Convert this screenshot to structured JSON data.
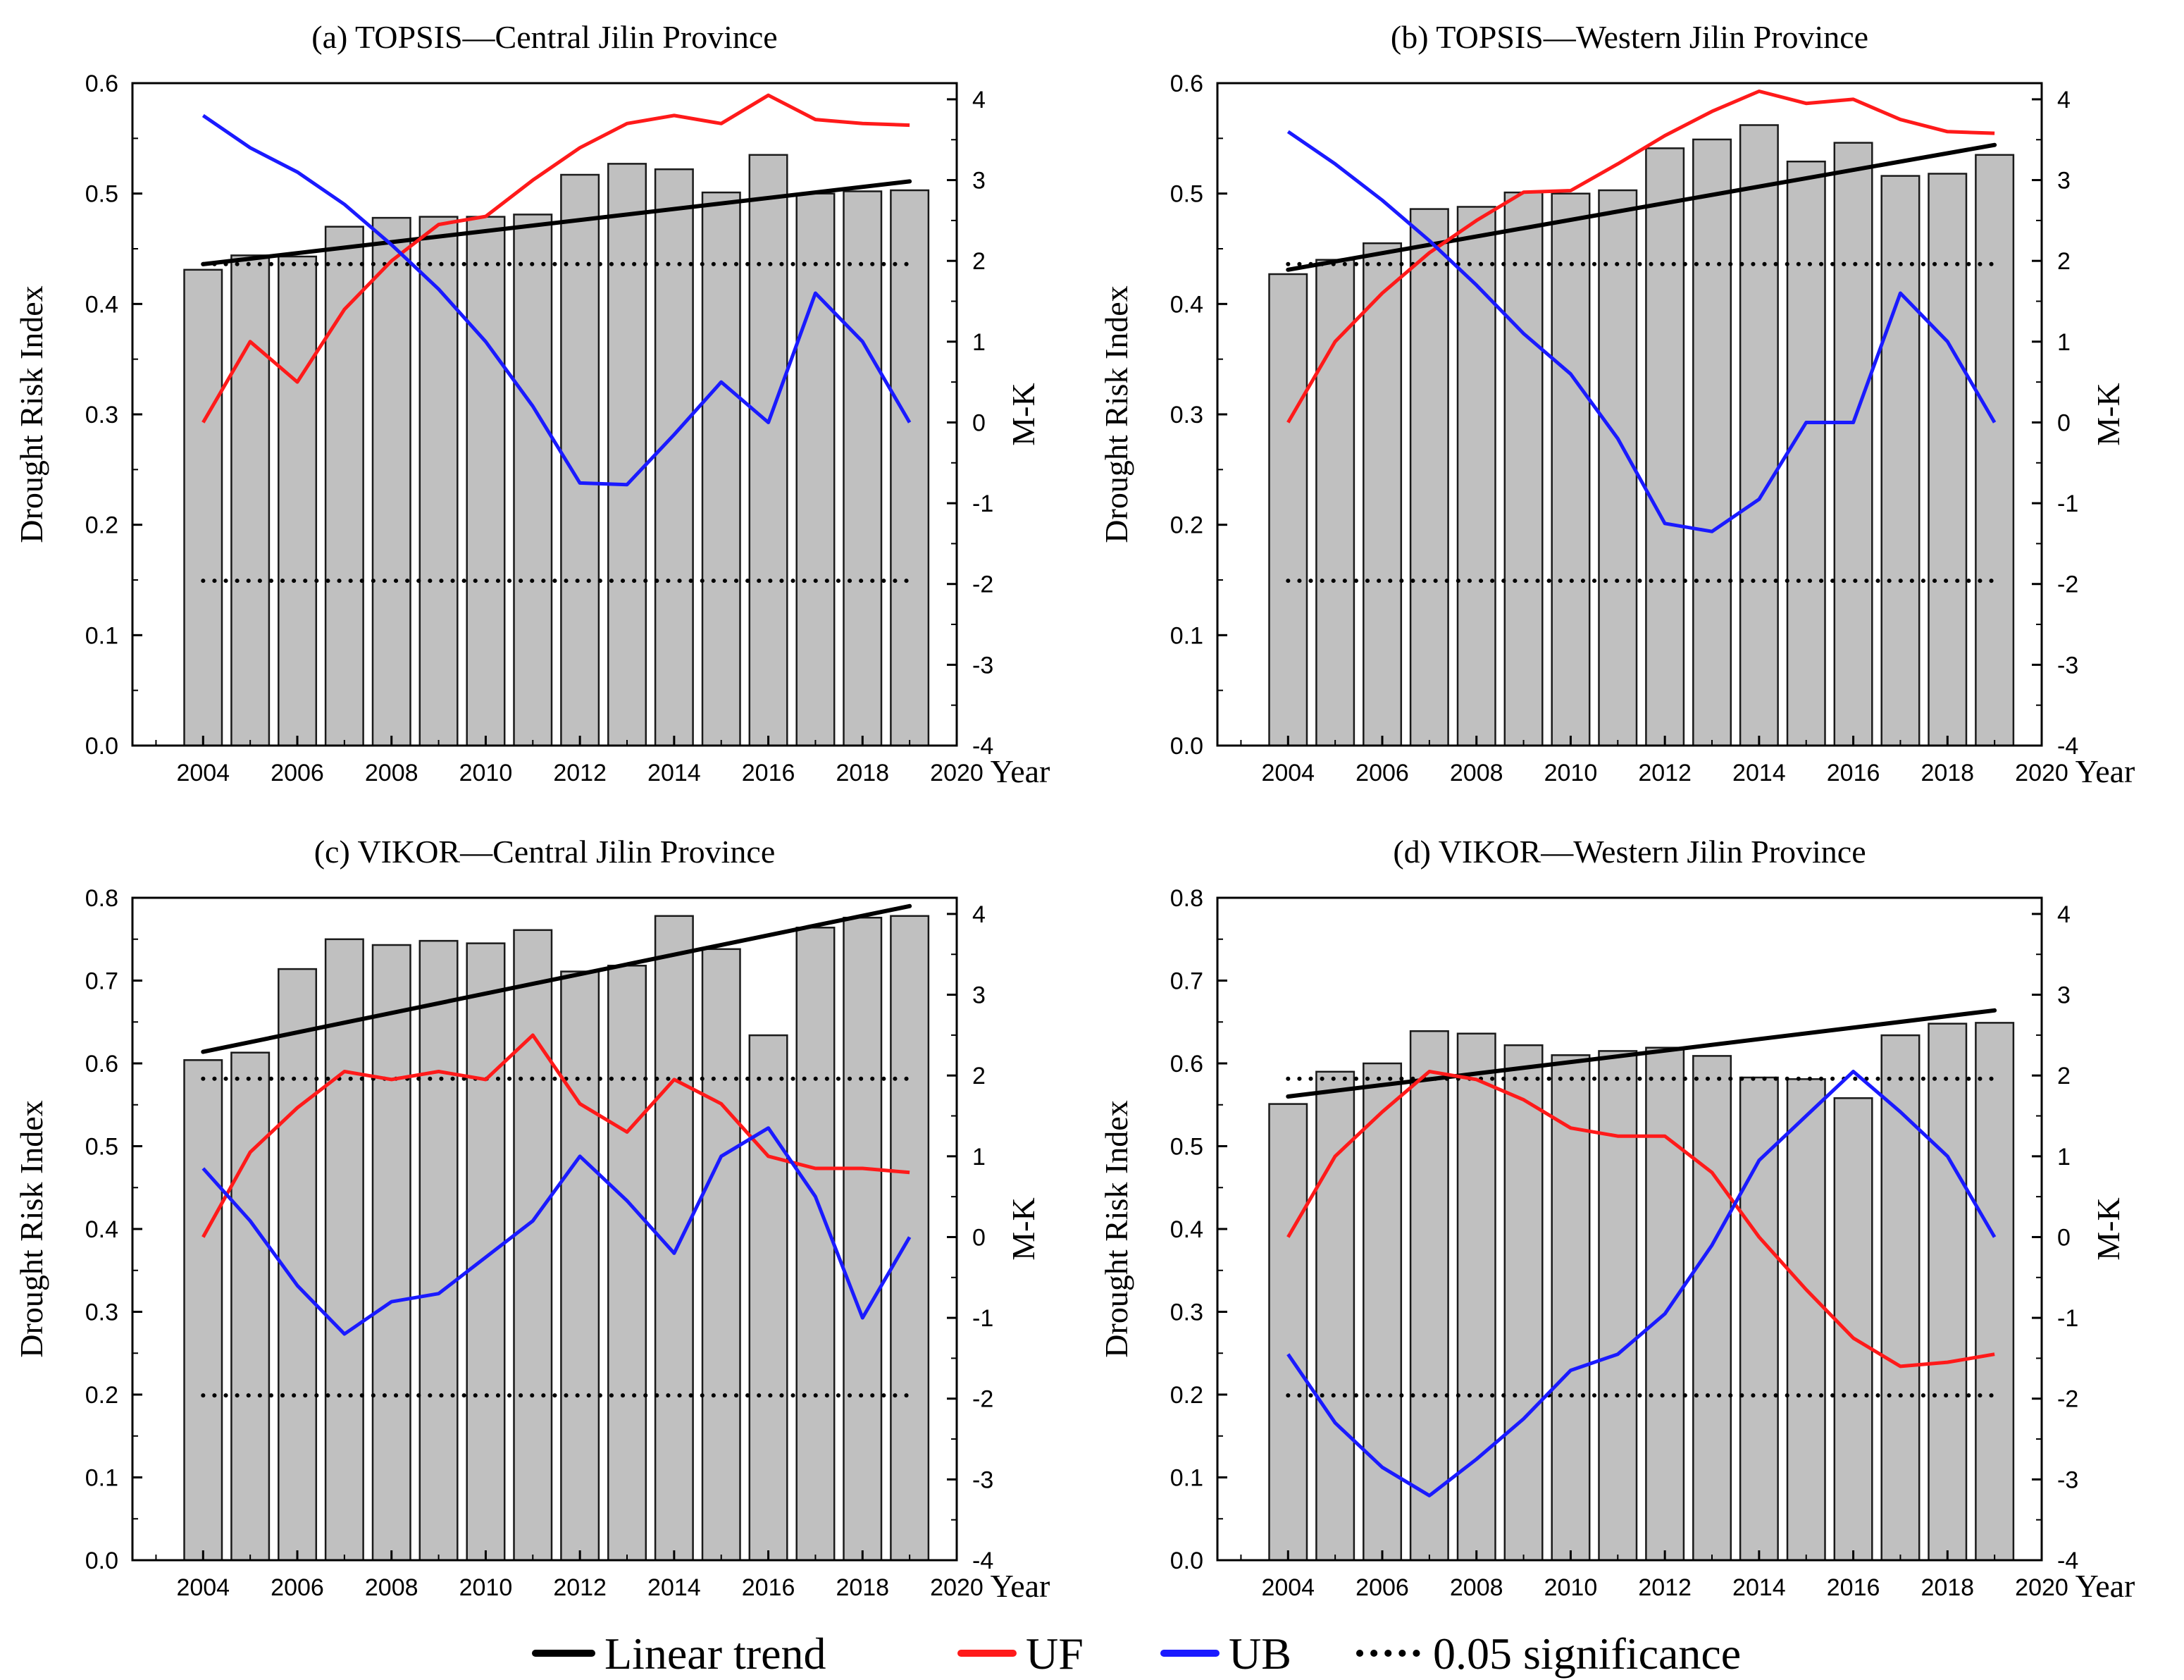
{
  "chart_data": [
    {
      "type": "bar",
      "title": "(a) TOPSIS—Central Jilin Province",
      "ylabel": "Drought Risk Index",
      "y2label": "M-K",
      "xlabel": "Year",
      "categories": [
        2004,
        2005,
        2006,
        2007,
        2008,
        2009,
        2010,
        2011,
        2012,
        2013,
        2014,
        2015,
        2016,
        2017,
        2018,
        2019
      ],
      "values": [
        0.431,
        0.444,
        0.443,
        0.47,
        0.478,
        0.479,
        0.479,
        0.481,
        0.517,
        0.527,
        0.522,
        0.501,
        0.535,
        0.5,
        0.502,
        0.503
      ],
      "trend": [
        0.436,
        0.511
      ],
      "UF": [
        0.0,
        1.0,
        0.5,
        1.4,
        2.0,
        2.45,
        2.55,
        3.0,
        3.4,
        3.7,
        3.8,
        3.7,
        4.05,
        3.75,
        3.7,
        3.68
      ],
      "UB": [
        3.8,
        3.4,
        3.1,
        2.7,
        2.2,
        1.65,
        1.0,
        0.2,
        -0.75,
        -0.77,
        -0.15,
        0.5,
        0.0,
        1.6,
        1.0,
        0.0
      ],
      "significance": [
        1.96,
        -1.96
      ],
      "xlim": [
        2002.5,
        2020
      ],
      "xticks": [
        2004,
        2006,
        2008,
        2010,
        2012,
        2014,
        2016,
        2018,
        2020
      ],
      "ylim": [
        0,
        0.6
      ],
      "yticks": [
        "0.0",
        "0.1",
        "0.2",
        "0.3",
        "0.4",
        "0.5",
        "0.6"
      ],
      "y2lim": [
        -4,
        4.2
      ],
      "y2ticks": [
        "4",
        "3",
        "2",
        "1",
        "0",
        "-1",
        "-2",
        "-3",
        "-4"
      ]
    },
    {
      "type": "bar",
      "title": "(b) TOPSIS—Western Jilin Province",
      "ylabel": "Drought Risk Index",
      "y2label": "M-K",
      "xlabel": "Year",
      "categories": [
        2004,
        2005,
        2006,
        2007,
        2008,
        2009,
        2010,
        2011,
        2012,
        2013,
        2014,
        2015,
        2016,
        2017,
        2018,
        2019
      ],
      "values": [
        0.427,
        0.44,
        0.455,
        0.486,
        0.488,
        0.501,
        0.5,
        0.503,
        0.541,
        0.549,
        0.562,
        0.529,
        0.546,
        0.516,
        0.518,
        0.535
      ],
      "trend": [
        0.431,
        0.544
      ],
      "UF": [
        0.0,
        1.0,
        1.6,
        2.1,
        2.5,
        2.85,
        2.87,
        3.2,
        3.55,
        3.85,
        4.1,
        3.95,
        4.0,
        3.75,
        3.6,
        3.58
      ],
      "UB": [
        3.6,
        3.2,
        2.75,
        2.25,
        1.7,
        1.1,
        0.6,
        -0.2,
        -1.25,
        -1.35,
        -0.95,
        0.0,
        0.0,
        1.6,
        1.0,
        0.0
      ],
      "significance": [
        1.96,
        -1.96
      ],
      "xlim": [
        2002.5,
        2020
      ],
      "xticks": [
        2004,
        2006,
        2008,
        2010,
        2012,
        2014,
        2016,
        2018,
        2020
      ],
      "ylim": [
        0,
        0.6
      ],
      "yticks": [
        "0.0",
        "0.1",
        "0.2",
        "0.3",
        "0.4",
        "0.5",
        "0.6"
      ],
      "y2lim": [
        -4,
        4.2
      ],
      "y2ticks": [
        "4",
        "3",
        "2",
        "1",
        "0",
        "-1",
        "-2",
        "-3",
        "-4"
      ]
    },
    {
      "type": "bar",
      "title": "(c) VIKOR—Central Jilin Province",
      "ylabel": "Drought Risk Index",
      "y2label": "M-K",
      "xlabel": "Year",
      "categories": [
        2004,
        2005,
        2006,
        2007,
        2008,
        2009,
        2010,
        2011,
        2012,
        2013,
        2014,
        2015,
        2016,
        2017,
        2018,
        2019
      ],
      "values": [
        0.604,
        0.613,
        0.714,
        0.75,
        0.743,
        0.748,
        0.745,
        0.761,
        0.711,
        0.718,
        0.778,
        0.738,
        0.634,
        0.764,
        0.776,
        0.778
      ],
      "trend": [
        0.614,
        0.79
      ],
      "UF": [
        0.0,
        1.05,
        1.6,
        2.05,
        1.95,
        2.05,
        1.95,
        2.5,
        1.65,
        1.3,
        1.95,
        1.65,
        1.0,
        0.85,
        0.85,
        0.8
      ],
      "UB": [
        0.85,
        0.2,
        -0.6,
        -1.2,
        -0.8,
        -0.7,
        -0.25,
        0.2,
        1.0,
        0.45,
        -0.2,
        1.0,
        1.35,
        0.5,
        -1.0,
        0.0
      ],
      "significance": [
        1.96,
        -1.96
      ],
      "xlim": [
        2002.5,
        2020
      ],
      "xticks": [
        2004,
        2006,
        2008,
        2010,
        2012,
        2014,
        2016,
        2018,
        2020
      ],
      "ylim": [
        0,
        0.8
      ],
      "yticks": [
        "0.0",
        "0.1",
        "0.2",
        "0.3",
        "0.4",
        "0.5",
        "0.6",
        "0.7",
        "0.8"
      ],
      "y2lim": [
        -4,
        4.2
      ],
      "y2ticks": [
        "4",
        "3",
        "2",
        "1",
        "0",
        "-1",
        "-2",
        "-3",
        "-4"
      ]
    },
    {
      "type": "bar",
      "title": "(d) VIKOR—Western Jilin Province",
      "ylabel": "Drought Risk Index",
      "y2label": "M-K",
      "xlabel": "Year",
      "categories": [
        2004,
        2005,
        2006,
        2007,
        2008,
        2009,
        2010,
        2011,
        2012,
        2013,
        2014,
        2015,
        2016,
        2017,
        2018,
        2019
      ],
      "values": [
        0.551,
        0.59,
        0.6,
        0.639,
        0.636,
        0.622,
        0.61,
        0.615,
        0.619,
        0.609,
        0.583,
        0.581,
        0.558,
        0.634,
        0.648,
        0.649
      ],
      "trend": [
        0.56,
        0.664
      ],
      "UF": [
        0.0,
        1.0,
        1.55,
        2.05,
        1.95,
        1.7,
        1.35,
        1.25,
        1.25,
        0.8,
        0.0,
        -0.65,
        -1.25,
        -1.6,
        -1.55,
        -1.45
      ],
      "UB": [
        -1.45,
        -2.3,
        -2.85,
        -3.2,
        -2.75,
        -2.25,
        -1.65,
        -1.45,
        -0.95,
        -0.1,
        0.95,
        1.5,
        2.05,
        1.55,
        1.0,
        0.0
      ],
      "significance": [
        1.96,
        -1.96
      ],
      "xlim": [
        2002.5,
        2020
      ],
      "xticks": [
        2004,
        2006,
        2008,
        2010,
        2012,
        2014,
        2016,
        2018,
        2020
      ],
      "ylim": [
        0,
        0.8
      ],
      "yticks": [
        "0.0",
        "0.1",
        "0.2",
        "0.3",
        "0.4",
        "0.5",
        "0.6",
        "0.7",
        "0.8"
      ],
      "y2lim": [
        -4,
        4.2
      ],
      "y2ticks": [
        "4",
        "3",
        "2",
        "1",
        "0",
        "-1",
        "-2",
        "-3",
        "-4"
      ]
    }
  ],
  "legend": {
    "items": [
      {
        "label": "Linear trend",
        "style": "solid",
        "color": "#000000"
      },
      {
        "label": "UF",
        "style": "solid",
        "color": "#ff1a1a"
      },
      {
        "label": "UB",
        "style": "solid",
        "color": "#1a1aff"
      },
      {
        "label": "0.05 significance",
        "style": "dotted",
        "color": "#000000"
      }
    ]
  },
  "colors": {
    "bar_fill": "#c0c0c0",
    "bar_stroke": "#1a1a1a",
    "trend": "#000000",
    "uf": "#ff1a1a",
    "ub": "#1a1aff"
  }
}
